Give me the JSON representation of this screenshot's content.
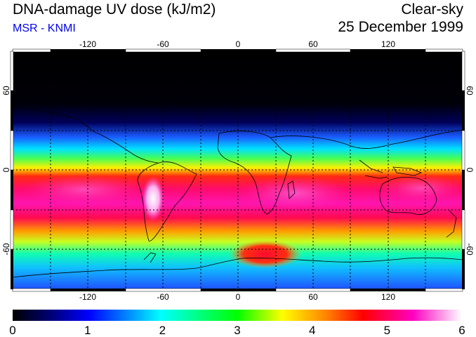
{
  "header": {
    "title": "DNA-damage UV dose (kJ/m2)",
    "subtitle": "MSR - KNMI",
    "condition": "Clear-sky",
    "date": "25 December 1999"
  },
  "map": {
    "lon_ticks_top": [
      "-120",
      "-60",
      "0",
      "60",
      "120"
    ],
    "lon_ticks_bottom": [
      "-120",
      "-60",
      "0",
      "60",
      "120"
    ],
    "lat_ticks_left": [
      "60",
      "0",
      "-60"
    ],
    "lat_ticks_right": [
      "60",
      "0",
      "-60"
    ]
  },
  "colorbar": {
    "labels": [
      "0",
      "1",
      "2",
      "3",
      "4",
      "5",
      "6"
    ],
    "colors": [
      "#000000",
      "#0000ff",
      "#00ffff",
      "#00ff00",
      "#ffff00",
      "#ff0000",
      "#ff00ff",
      "#ffffff"
    ]
  },
  "colors": {
    "subtitle": "#0000ee",
    "frame": "#000000"
  }
}
